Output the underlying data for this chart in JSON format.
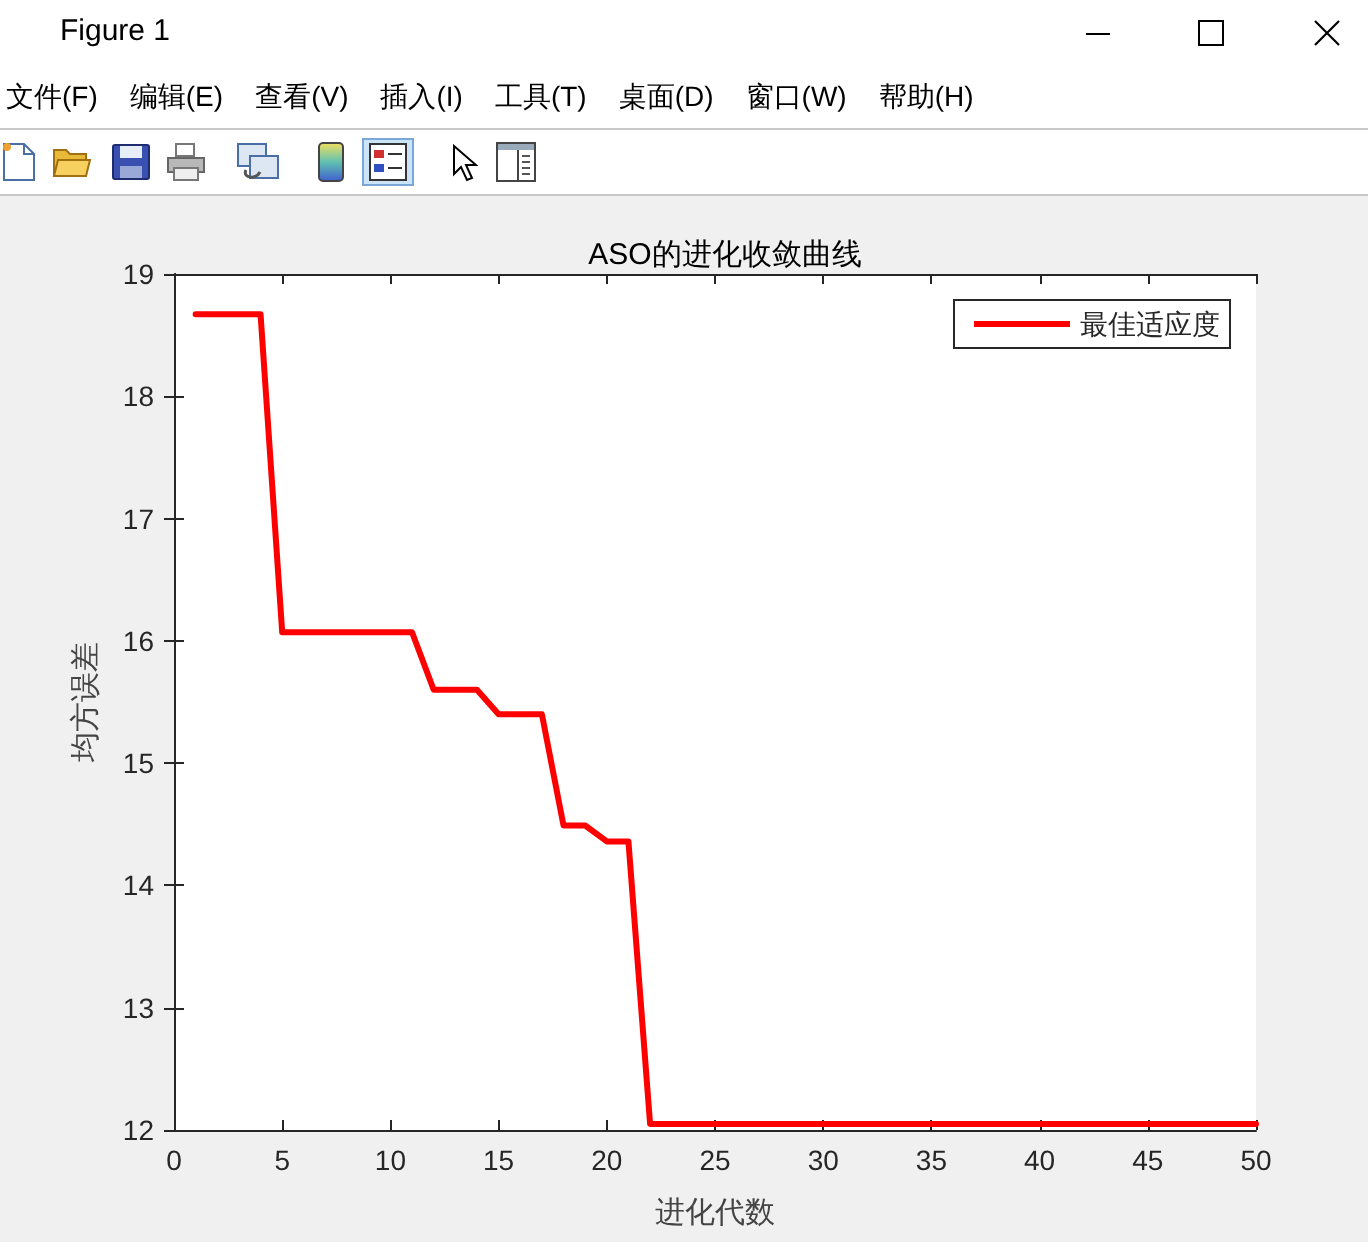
{
  "chart_data": {
    "type": "line",
    "title": "ASO的进化收敛曲线",
    "xlabel": "进化代数",
    "ylabel": "均方误差",
    "annotations": [
      "Figure 1",
      "文件(F)",
      "编辑(E)",
      "查看(V)",
      "插入(I)",
      "工具(T)",
      "桌面(D)",
      "窗口(W)",
      "帮助(H)"
    ],
    "x": [
      1,
      2,
      3,
      4,
      5,
      6,
      7,
      8,
      9,
      10,
      11,
      12,
      13,
      14,
      15,
      16,
      17,
      18,
      19,
      20,
      21,
      22,
      23,
      24,
      25,
      26,
      27,
      28,
      29,
      30,
      31,
      32,
      33,
      34,
      35,
      36,
      37,
      38,
      39,
      40,
      41,
      42,
      43,
      44,
      45,
      46,
      47,
      48,
      49,
      50
    ],
    "series": [
      {
        "name": "最佳适应度",
        "color": "#ff0000",
        "values": [
          18.67,
          18.67,
          18.67,
          18.67,
          16.07,
          16.07,
          16.07,
          16.07,
          16.07,
          16.07,
          16.07,
          15.6,
          15.6,
          15.6,
          15.4,
          15.4,
          15.4,
          14.49,
          14.49,
          14.36,
          14.36,
          12.05,
          12.05,
          12.05,
          12.05,
          12.05,
          12.05,
          12.05,
          12.05,
          12.05,
          12.05,
          12.05,
          12.05,
          12.05,
          12.05,
          12.05,
          12.05,
          12.05,
          12.05,
          12.05,
          12.05,
          12.05,
          12.05,
          12.05,
          12.05,
          12.05,
          12.05,
          12.05,
          12.05,
          12.05
        ]
      }
    ],
    "xlim": [
      0,
      50
    ],
    "xticks": [
      0,
      5,
      10,
      15,
      20,
      25,
      30,
      35,
      40,
      45,
      50
    ],
    "ylim": [
      12,
      19
    ],
    "yticks": [
      12,
      13,
      14,
      15,
      16,
      17,
      18,
      19
    ],
    "grid": false,
    "legend": "top right",
    "marker": "none",
    "line_style": "solid"
  }
}
